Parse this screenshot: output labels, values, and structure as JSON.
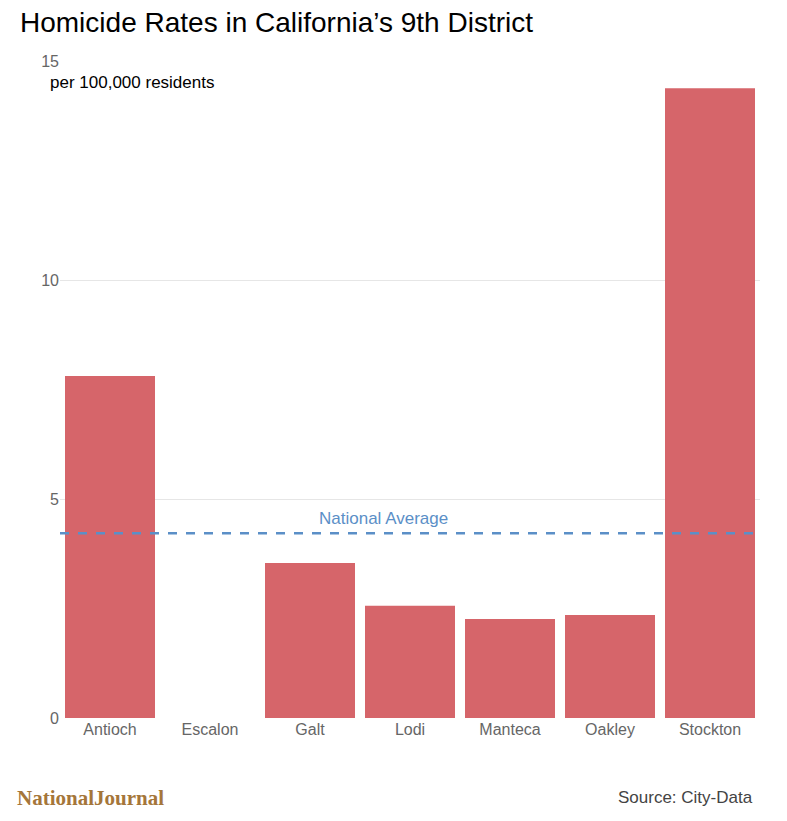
{
  "chart_data": {
    "type": "bar",
    "title": "Homicide Rates in California’s 9th District",
    "subtitle": "per 100,000 residents",
    "categories": [
      "Antioch",
      "Escalon",
      "Galt",
      "Lodi",
      "Manteca",
      "Oakley",
      "Stockton"
    ],
    "values": [
      7.81,
      0,
      3.54,
      2.56,
      2.26,
      2.35,
      14.38
    ],
    "color": "#d6656a",
    "ylim": [
      0,
      15
    ],
    "yticks": [
      0,
      5,
      10,
      15
    ],
    "grid": true,
    "reference_lines": [
      {
        "label": "National Average",
        "value": 4.22,
        "color": "#5b8fc7"
      }
    ],
    "source": "Source: City-Data",
    "credit": "NationalJournal"
  }
}
